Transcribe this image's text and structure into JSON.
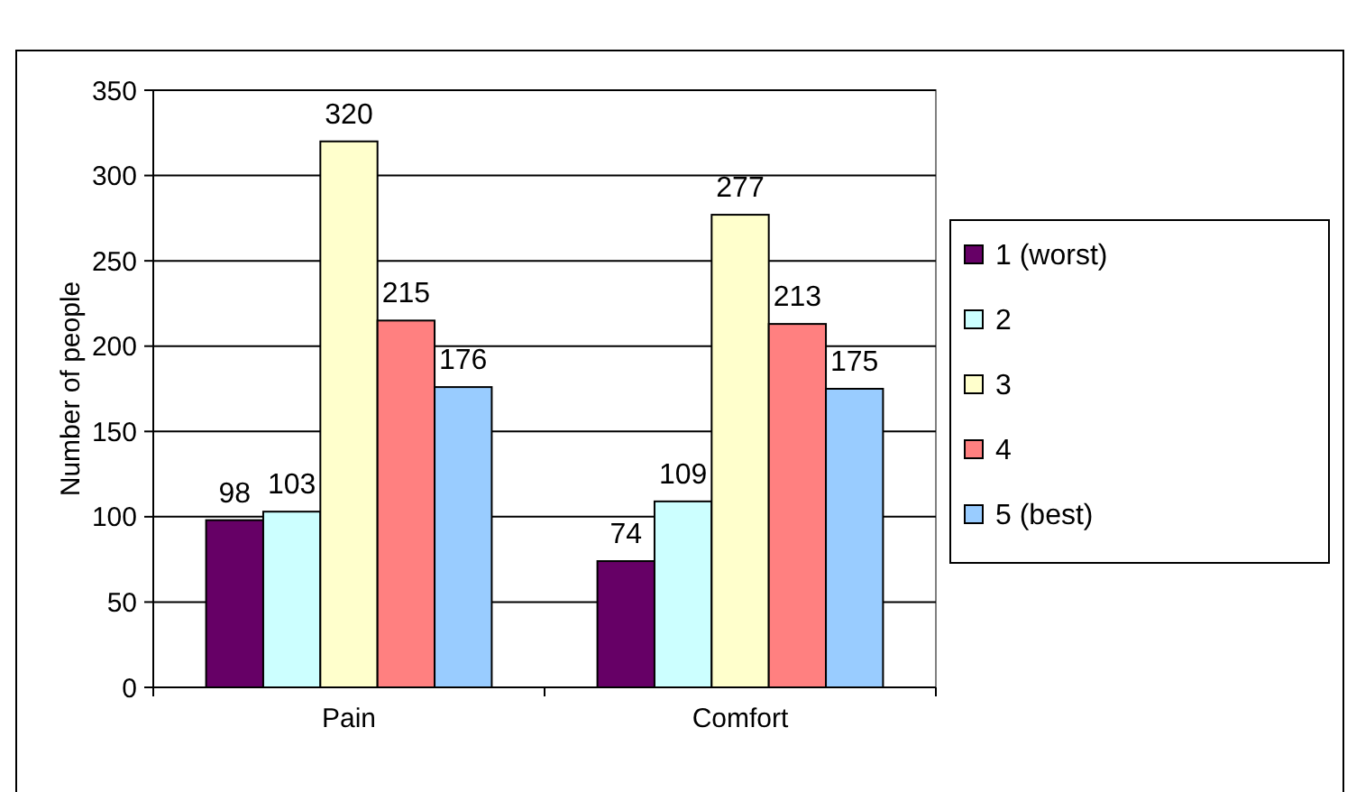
{
  "chart_data": {
    "type": "bar",
    "ylabel": "Number of people",
    "categories": [
      "Pain",
      "Comfort"
    ],
    "series": [
      {
        "name": "1 (worst)",
        "color": "#660066",
        "values": [
          98,
          74
        ]
      },
      {
        "name": "2",
        "color": "#ccffff",
        "values": [
          103,
          109
        ]
      },
      {
        "name": "3",
        "color": "#ffffcc",
        "values": [
          320,
          277
        ]
      },
      {
        "name": "4",
        "color": "#ff8080",
        "values": [
          215,
          213
        ]
      },
      {
        "name": "5 (best)",
        "color": "#99ccff",
        "values": [
          176,
          175
        ]
      }
    ],
    "ylim": [
      0,
      350
    ],
    "yticks": [
      0,
      50,
      100,
      150,
      200,
      250,
      300,
      350
    ],
    "grid": "y",
    "legend": "right",
    "data_labels": true
  }
}
